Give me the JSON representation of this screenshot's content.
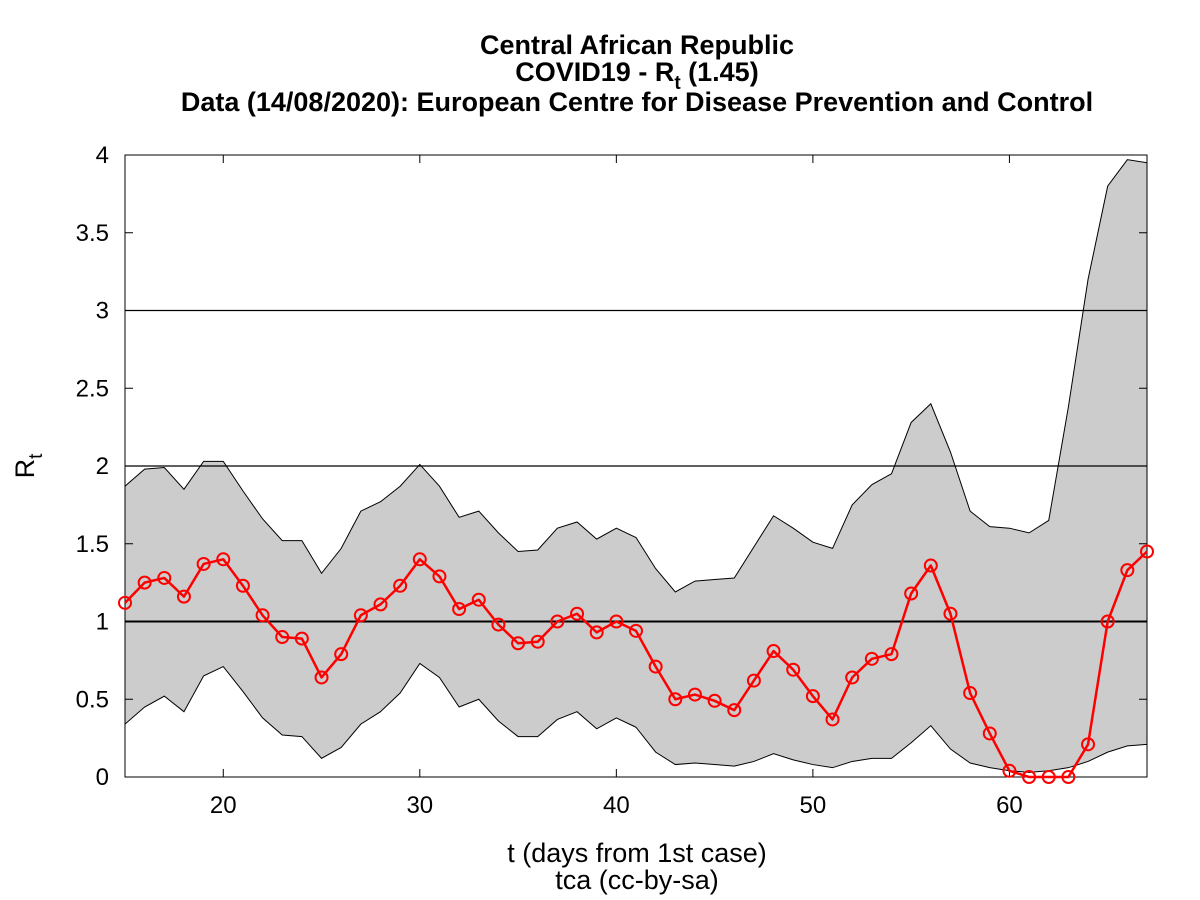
{
  "chart_data": {
    "type": "line",
    "title_line1": "Central African Republic",
    "title_line2_prefix": "COVID19 - R",
    "title_line2_sub": "t",
    "title_line2_suffix": " (1.45)",
    "title_line3": "Data (14/08/2020): European Centre for Disease Prevention and Control",
    "xlabel": "t (days from 1st case)",
    "ylabel_main": "R",
    "ylabel_sub": "t",
    "credit": "tca (cc-by-sa)",
    "xlim": [
      15,
      67
    ],
    "ylim": [
      0,
      4
    ],
    "xticks": [
      20,
      30,
      40,
      50,
      60
    ],
    "yticks": [
      "0",
      "0.5",
      "1",
      "1.5",
      "2",
      "2.5",
      "3",
      "3.5",
      "4"
    ],
    "reference_lines": [
      1,
      2,
      3
    ],
    "x": [
      15,
      16,
      17,
      18,
      19,
      20,
      21,
      22,
      23,
      24,
      25,
      26,
      27,
      28,
      29,
      30,
      31,
      32,
      33,
      34,
      35,
      36,
      37,
      38,
      39,
      40,
      41,
      42,
      43,
      44,
      45,
      46,
      47,
      48,
      49,
      50,
      51,
      52,
      53,
      54,
      55,
      56,
      57,
      58,
      59,
      60,
      61,
      62,
      63,
      64,
      65,
      66,
      67
    ],
    "series": [
      {
        "values": [
          1.12,
          1.25,
          1.28,
          1.16,
          1.37,
          1.4,
          1.23,
          1.04,
          0.9,
          0.89,
          0.64,
          0.79,
          1.04,
          1.11,
          1.23,
          1.4,
          1.29,
          1.08,
          1.14,
          0.98,
          0.86,
          0.87,
          1.0,
          1.05,
          0.93,
          1.0,
          0.94,
          0.71,
          0.5,
          0.53,
          0.49,
          0.43,
          0.62,
          0.81,
          0.69,
          0.52,
          0.37,
          0.64,
          0.76,
          0.79,
          1.18,
          1.36,
          1.05,
          0.54,
          0.28,
          0.04,
          0.0,
          0.0,
          0.0,
          0.21,
          1.0,
          1.33,
          1.45
        ],
        "color": "#ff0000"
      }
    ],
    "band_upper": [
      1.87,
      1.98,
      1.99,
      1.85,
      2.03,
      2.03,
      1.84,
      1.66,
      1.52,
      1.52,
      1.31,
      1.47,
      1.71,
      1.77,
      1.87,
      2.01,
      1.87,
      1.67,
      1.71,
      1.57,
      1.45,
      1.46,
      1.6,
      1.64,
      1.53,
      1.6,
      1.54,
      1.34,
      1.19,
      1.26,
      1.27,
      1.28,
      1.48,
      1.68,
      1.6,
      1.51,
      1.47,
      1.75,
      1.88,
      1.95,
      2.28,
      2.4,
      2.09,
      1.71,
      1.61,
      1.6,
      1.57,
      1.65,
      2.38,
      3.2,
      3.8,
      3.97,
      3.95
    ],
    "band_lower": [
      0.34,
      0.45,
      0.52,
      0.42,
      0.65,
      0.71,
      0.55,
      0.38,
      0.27,
      0.26,
      0.12,
      0.19,
      0.34,
      0.42,
      0.54,
      0.73,
      0.64,
      0.45,
      0.5,
      0.36,
      0.26,
      0.26,
      0.37,
      0.42,
      0.31,
      0.38,
      0.32,
      0.16,
      0.08,
      0.09,
      0.08,
      0.07,
      0.1,
      0.15,
      0.11,
      0.08,
      0.06,
      0.1,
      0.12,
      0.12,
      0.22,
      0.33,
      0.18,
      0.09,
      0.06,
      0.04,
      0.03,
      0.04,
      0.06,
      0.1,
      0.16,
      0.2,
      0.21
    ],
    "band_color": "#cccccc",
    "line_color": "#ff0000",
    "grid": false
  }
}
